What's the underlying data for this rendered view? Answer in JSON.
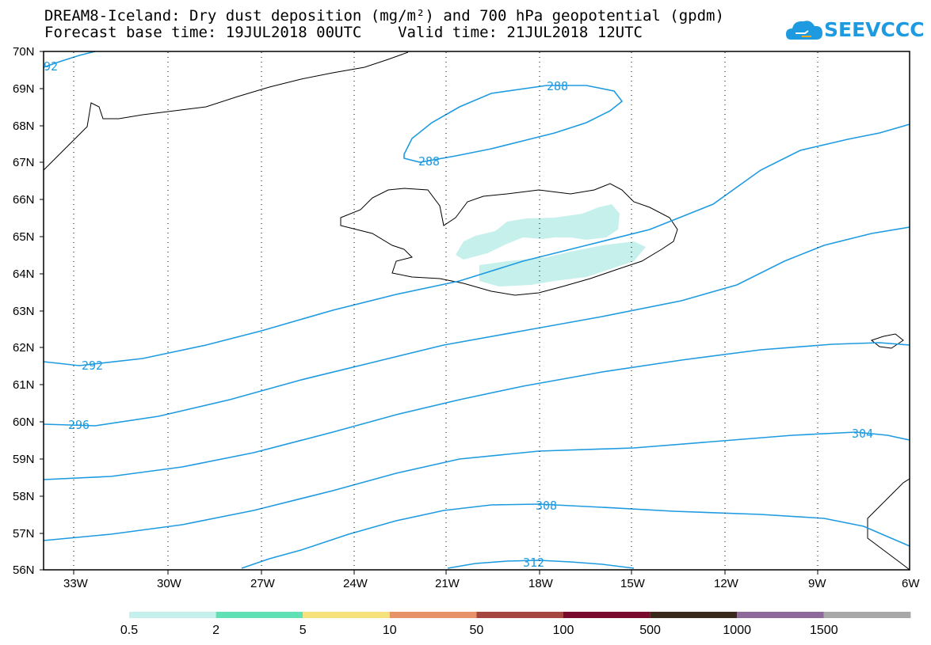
{
  "title_line1": "DREAM8-Iceland: Dry dust deposition (mg/m²) and 700 hPa geopotential (gpdm)",
  "title_line2": "Forecast base time: 19JUL2018 00UTC    Valid time: 21JUL2018 12UTC",
  "logo_text": "SEEVCCC",
  "map": {
    "lat_labels": [
      "70N",
      "69N",
      "68N",
      "67N",
      "66N",
      "65N",
      "64N",
      "63N",
      "62N",
      "61N",
      "60N",
      "59N",
      "58N",
      "57N",
      "56N"
    ],
    "lon_labels": [
      "33W",
      "30W",
      "27W",
      "24W",
      "21W",
      "18W",
      "15W",
      "12W",
      "9W",
      "6W"
    ],
    "lat_range": [
      56,
      70
    ],
    "lon_range": [
      -34.5,
      -6
    ],
    "grid": "dotted",
    "contour_color": "#1e9be0",
    "contour_labels": [
      "92",
      "288",
      "288",
      "292",
      "296",
      "304",
      "308",
      "312"
    ],
    "dust_color": "#c6f0ec"
  },
  "legend": {
    "tick_labels": [
      "0.5",
      "2",
      "5",
      "10",
      "50",
      "100",
      "500",
      "1000",
      "1500"
    ],
    "colors": [
      "#c6f0ec",
      "#5fe0b5",
      "#f5e27a",
      "#e8926a",
      "#a6473f",
      "#7a0a2e",
      "#3a2a1c",
      "#8e6a9a",
      "#a8a8a8"
    ]
  }
}
